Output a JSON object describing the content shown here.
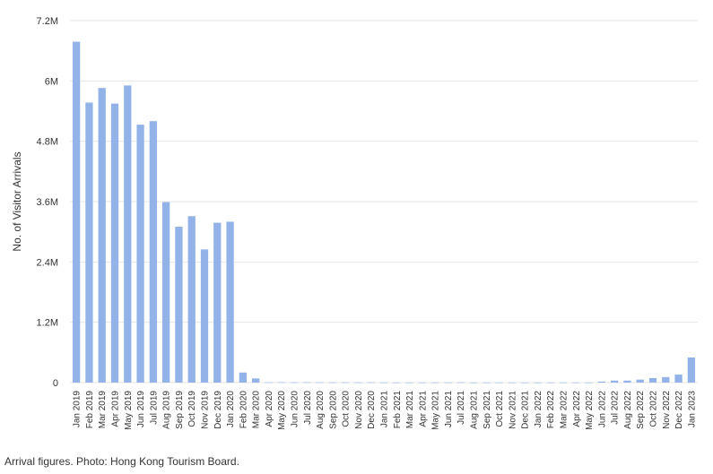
{
  "caption": "Arrival figures. Photo: Hong Kong Tourism Board.",
  "colors": {
    "bar": "#93b3e8",
    "grid": "#e6e6e6",
    "text": "#333333"
  },
  "chart_data": {
    "type": "bar",
    "title": "",
    "xlabel": "",
    "ylabel": "No. of Visitor Arrivals",
    "ylim": [
      0,
      7200000
    ],
    "yticks": [
      0,
      1200000,
      2400000,
      3600000,
      4800000,
      6000000,
      7200000
    ],
    "ytick_labels": [
      "0",
      "1.2M",
      "2.4M",
      "3.6M",
      "4.8M",
      "6M",
      "7.2M"
    ],
    "grid": true,
    "legend": "none",
    "categories": [
      "Jan 2019",
      "Feb 2019",
      "Mar 2019",
      "Apr 2019",
      "May 2019",
      "Jun 2019",
      "Jul 2019",
      "Aug 2019",
      "Sep 2019",
      "Oct 2019",
      "Nov 2019",
      "Dec 2019",
      "Jan 2020",
      "Feb 2020",
      "Mar 2020",
      "Apr 2020",
      "May 2020",
      "Jun 2020",
      "Jul 2020",
      "Aug 2020",
      "Sep 2020",
      "Oct 2020",
      "Nov 2020",
      "Dec 2020",
      "Jan 2021",
      "Feb 2021",
      "Mar 2021",
      "Apr 2021",
      "May 2021",
      "Jun 2021",
      "Jul 2021",
      "Aug 2021",
      "Sep 2021",
      "Oct 2021",
      "Nov 2021",
      "Dec 2021",
      "Jan 2022",
      "Feb 2022",
      "Mar 2022",
      "Apr 2022",
      "May 2022",
      "Jun 2022",
      "Jul 2022",
      "Aug 2022",
      "Sep 2022",
      "Oct 2022",
      "Nov 2022",
      "Dec 2022",
      "Jan 2023"
    ],
    "values": [
      6780000,
      5570000,
      5860000,
      5550000,
      5910000,
      5130000,
      5200000,
      3590000,
      3100000,
      3310000,
      2650000,
      3180000,
      3200000,
      200000,
      83000,
      4500,
      8000,
      6000,
      7000,
      4500,
      4000,
      4500,
      3500,
      3500,
      3000,
      2500,
      3000,
      3000,
      3500,
      3500,
      3500,
      2500,
      3000,
      2500,
      2500,
      2500,
      2500,
      2500,
      2500,
      2500,
      3000,
      20000,
      40000,
      40000,
      60000,
      90000,
      110000,
      160000,
      500000
    ]
  }
}
